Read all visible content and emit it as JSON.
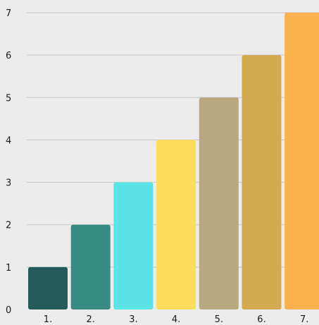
{
  "chart_data": {
    "type": "bar",
    "categories": [
      "1.",
      "2.",
      "3.",
      "4.",
      "5.",
      "6.",
      "7."
    ],
    "values": [
      1,
      2,
      3,
      4,
      5,
      6,
      7
    ],
    "colors": [
      "#245a57",
      "#378b81",
      "#5ce3e6",
      "#ffdd5c",
      "#b8a982",
      "#d3a951",
      "#fab24e"
    ],
    "y_tick_labels": [
      "0",
      "1",
      "2",
      "3",
      "4",
      "5",
      "6",
      "7"
    ],
    "ylim": [
      0,
      7
    ],
    "grid": true,
    "legend": false,
    "title": "",
    "xlabel": "",
    "ylabel": ""
  }
}
